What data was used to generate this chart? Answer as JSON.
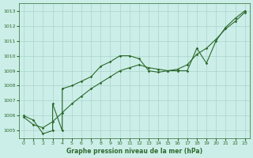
{
  "line1_x": [
    0,
    1,
    2,
    3,
    3,
    4,
    4,
    5,
    6,
    7,
    8,
    9,
    10,
    11,
    12,
    13,
    14,
    15,
    16,
    17,
    18,
    19,
    20,
    21,
    22,
    23
  ],
  "line1_y": [
    1006.0,
    1005.7,
    1004.8,
    1005.0,
    1006.8,
    1005.0,
    1007.8,
    1008.0,
    1008.3,
    1008.6,
    1009.3,
    1009.6,
    1010.0,
    1010.0,
    1009.8,
    1009.0,
    1008.9,
    1009.0,
    1009.0,
    1009.0,
    1010.5,
    1009.5,
    1011.0,
    1011.9,
    1012.5,
    1013.0
  ],
  "line2_x": [
    0,
    1,
    2,
    3,
    4,
    5,
    6,
    7,
    8,
    9,
    10,
    11,
    12,
    13,
    14,
    15,
    16,
    17,
    18,
    19,
    20,
    21,
    22,
    23
  ],
  "line2_y": [
    1005.9,
    1005.4,
    1005.2,
    1005.6,
    1006.2,
    1006.8,
    1007.3,
    1007.8,
    1008.2,
    1008.6,
    1009.0,
    1009.2,
    1009.4,
    1009.2,
    1009.1,
    1009.0,
    1009.1,
    1009.4,
    1010.1,
    1010.5,
    1011.1,
    1011.8,
    1012.3,
    1012.9
  ],
  "line_color": "#2d6a2d",
  "bg_color": "#cceee8",
  "grid_color": "#aad4ce",
  "xlabel": "Graphe pression niveau de la mer (hPa)",
  "xlabel_color": "#2d6a2d",
  "ylim": [
    1004.5,
    1013.5
  ],
  "xlim": [
    -0.5,
    23.5
  ],
  "yticks": [
    1005,
    1006,
    1007,
    1008,
    1009,
    1010,
    1011,
    1012,
    1013
  ],
  "xticks": [
    0,
    1,
    2,
    3,
    4,
    5,
    6,
    7,
    8,
    9,
    10,
    11,
    12,
    13,
    14,
    15,
    16,
    17,
    18,
    19,
    20,
    21,
    22,
    23
  ]
}
